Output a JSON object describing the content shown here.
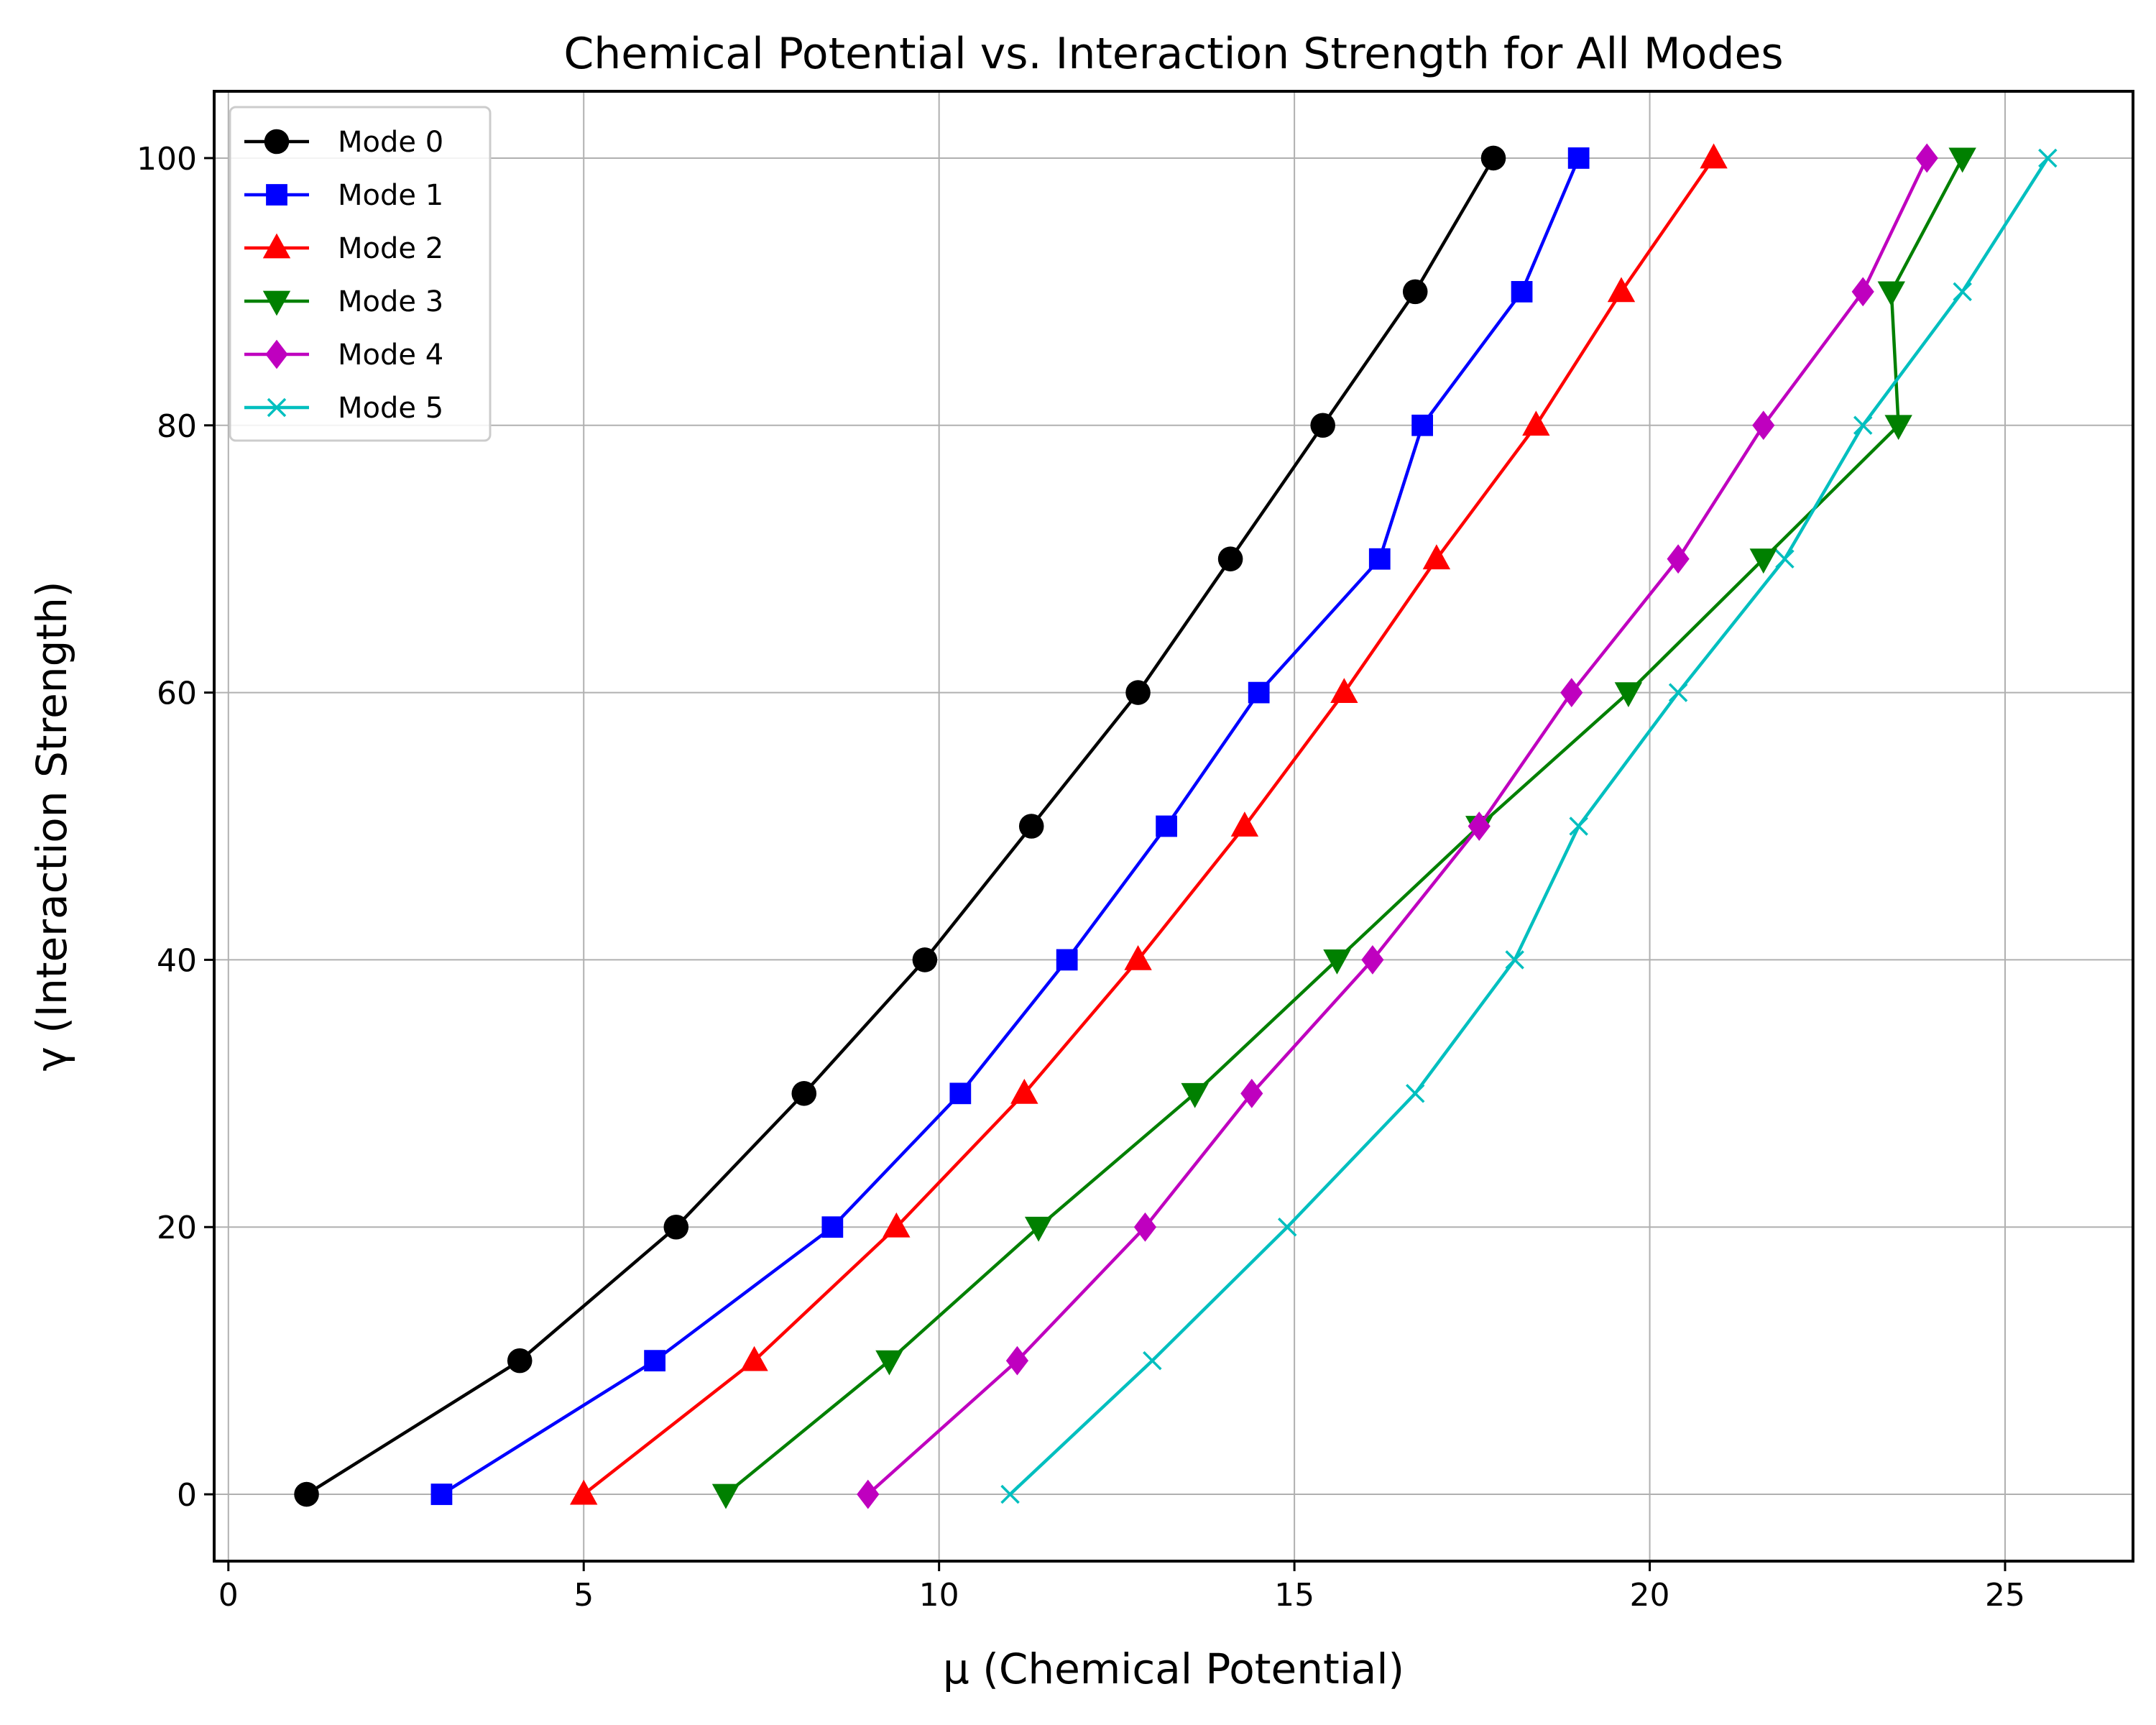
{
  "chart_data": {
    "type": "line",
    "title": "Chemical Potential vs. Interaction Strength for All Modes",
    "xlabel": "μ (Chemical Potential)",
    "ylabel": "γ (Interaction Strength)",
    "xlim": [
      -0.2,
      26.8
    ],
    "ylim": [
      -5,
      105
    ],
    "xticks": [
      0,
      5,
      10,
      15,
      20,
      25
    ],
    "yticks": [
      0,
      20,
      40,
      60,
      80,
      100
    ],
    "grid": true,
    "legend_position": "top-left",
    "series": [
      {
        "name": "Mode 0",
        "color": "#000000",
        "marker": "circle",
        "x": [
          1.1,
          4.1,
          6.3,
          8.1,
          9.8,
          11.3,
          12.8,
          14.1,
          15.4,
          16.7,
          17.8
        ],
        "y": [
          0,
          10,
          20,
          30,
          40,
          50,
          60,
          70,
          80,
          90,
          100
        ]
      },
      {
        "name": "Mode 1",
        "color": "#0000ff",
        "marker": "square",
        "x": [
          3.0,
          6.0,
          8.5,
          10.3,
          11.8,
          13.2,
          14.5,
          16.2,
          16.8,
          18.2,
          19.0
        ],
        "y": [
          0,
          10,
          20,
          30,
          40,
          50,
          60,
          70,
          80,
          90,
          100
        ]
      },
      {
        "name": "Mode 2",
        "color": "#ff0000",
        "marker": "triangle-up",
        "x": [
          5.0,
          7.4,
          9.4,
          11.2,
          12.8,
          14.3,
          15.7,
          17.0,
          18.4,
          19.6,
          20.9
        ],
        "y": [
          0,
          10,
          20,
          30,
          40,
          50,
          60,
          70,
          80,
          90,
          100
        ]
      },
      {
        "name": "Mode 3",
        "color": "#008000",
        "marker": "triangle-down",
        "x": [
          7.0,
          9.3,
          11.4,
          13.6,
          15.6,
          17.6,
          19.7,
          21.6,
          23.5,
          23.4,
          24.4
        ],
        "y": [
          0,
          10,
          20,
          30,
          40,
          50,
          60,
          70,
          80,
          90,
          100
        ]
      },
      {
        "name": "Mode 4",
        "color": "#bf00bf",
        "marker": "diamond",
        "x": [
          9.0,
          11.1,
          12.9,
          14.4,
          16.1,
          17.6,
          18.9,
          20.4,
          21.6,
          23.0,
          23.9
        ],
        "y": [
          0,
          10,
          20,
          30,
          40,
          50,
          60,
          70,
          80,
          90,
          100
        ]
      },
      {
        "name": "Mode 5",
        "color": "#00bfbf",
        "marker": "x",
        "x": [
          11.0,
          13.0,
          14.9,
          16.7,
          18.1,
          19.0,
          20.4,
          21.9,
          23.0,
          24.4,
          25.6
        ],
        "y": [
          0,
          10,
          20,
          30,
          40,
          50,
          60,
          70,
          80,
          90,
          100
        ]
      }
    ]
  }
}
